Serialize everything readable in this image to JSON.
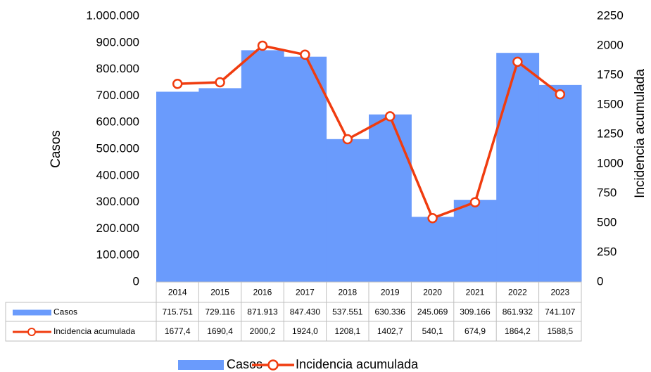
{
  "chart_data": {
    "type": "bar_line",
    "ylabel": "Casos",
    "y2label": "Incidencia acumulada",
    "categories": [
      "2014",
      "2015",
      "2016",
      "2017",
      "2018",
      "2019",
      "2020",
      "2021",
      "2022",
      "2023"
    ],
    "series": [
      {
        "name": "Casos",
        "type": "area",
        "color": "#6a9bfc",
        "values": [
          715751,
          729116,
          871913,
          847430,
          537551,
          630336,
          245069,
          309166,
          861932,
          741107
        ],
        "value_labels": [
          "715.751",
          "729.116",
          "871.913",
          "847.430",
          "537.551",
          "630.336",
          "245.069",
          "309.166",
          "861.932",
          "741.107"
        ]
      },
      {
        "name": "Incidencia acumulada",
        "type": "line",
        "axis": "y2",
        "color": "#f03c0f",
        "values": [
          1677.4,
          1690.4,
          2000.2,
          1924.0,
          1208.1,
          1402.7,
          540.1,
          674.9,
          1864.2,
          1588.5
        ],
        "value_labels": [
          "1677,4",
          "1690,4",
          "2000,2",
          "1924,0",
          "1208,1",
          "1402,7",
          "540,1",
          "674,9",
          "1864,2",
          "1588,5"
        ]
      }
    ],
    "ylim": [
      0,
      1000000
    ],
    "yticks": [
      0,
      {
        "value": 100000,
        "label": "100.000"
      },
      {
        "value": 200000,
        "label": "200.000"
      },
      {
        "value": 300000,
        "label": "300.000"
      },
      {
        "value": 400000,
        "label": "400.000"
      },
      {
        "value": 500000,
        "label": "500.000"
      },
      {
        "value": 600000,
        "label": "600.000"
      },
      {
        "value": 700000,
        "label": "700.000"
      },
      {
        "value": 800000,
        "label": "800.000"
      },
      {
        "value": 900000,
        "label": "900.000"
      },
      {
        "value": 1000000,
        "label": "1.000.000"
      }
    ],
    "y2lim": [
      0,
      2250
    ],
    "y2ticks": [
      0,
      250,
      500,
      750,
      1000,
      1250,
      1500,
      1750,
      2000,
      2250
    ],
    "grid": false,
    "legend": "bottom"
  }
}
